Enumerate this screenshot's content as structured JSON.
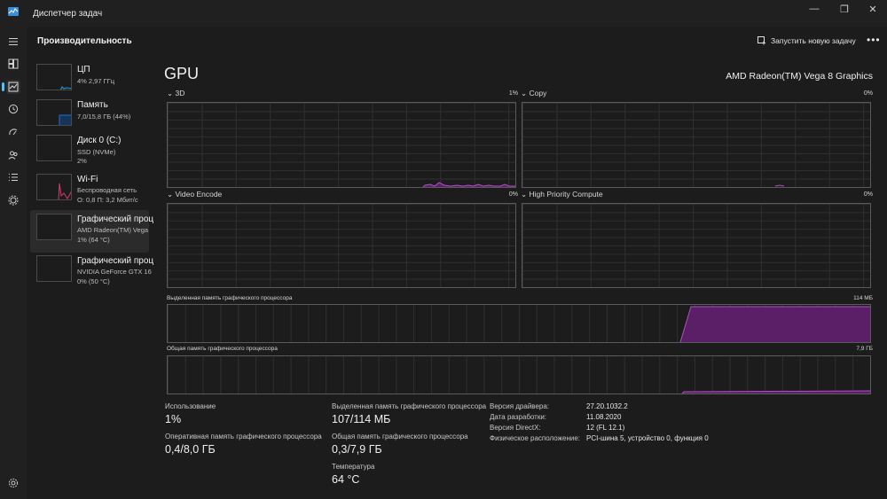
{
  "window": {
    "title": "Диспетчер задач",
    "controls": [
      "—",
      "❐",
      "✕"
    ]
  },
  "header": {
    "page_title": "Производительность",
    "run_task_label": "Запустить новую задачу",
    "more_label": "•••"
  },
  "rail": {
    "icons": [
      "hamburger-icon",
      "processes-icon",
      "performance-icon",
      "history-icon",
      "startup-icon",
      "users-icon",
      "details-icon",
      "services-icon",
      "settings-icon"
    ]
  },
  "devices": [
    {
      "name": "ЦП",
      "line1": "4% 2,97 ГГц",
      "line2": ""
    },
    {
      "name": "Память",
      "line1": "7,0/15,8 ГБ (44%)",
      "line2": ""
    },
    {
      "name": "Диск 0 (C:)",
      "line1": "SSD (NVMe)",
      "line2": "2%"
    },
    {
      "name": "Wi-Fi",
      "line1": "Беспроводная сеть",
      "line2": "О: 0,8 П: 3,2 Мбит/с"
    },
    {
      "name": "Графический проц",
      "line1": "AMD Radeon(TM) Vega",
      "line2": "1% (64 °C)"
    },
    {
      "name": "Графический проц",
      "line1": "NVIDIA GeForce GTX 16",
      "line2": "0% (50 °C)"
    }
  ],
  "gpu": {
    "title": "GPU",
    "model": "AMD Radeon(TM) Vega 8 Graphics",
    "engines": [
      {
        "name": "3D",
        "pct": "1%"
      },
      {
        "name": "Copy",
        "pct": "0%"
      },
      {
        "name": "Video Encode",
        "pct": "0%"
      },
      {
        "name": "High Priority Compute",
        "pct": "0%"
      }
    ],
    "dedicated_label": "Выделенная память графического процессора",
    "dedicated_max": "114 МБ",
    "shared_label": "Общая память графического процессора",
    "shared_max": "7,9 ГБ"
  },
  "stats": {
    "usage_label": "Использование",
    "usage_value": "1%",
    "gpu_ram_label": "Оперативная память графического процессора",
    "gpu_ram_value": "0,4/8,0 ГБ",
    "dedicated_label": "Выделенная память графического процессора",
    "dedicated_value": "107/114 МБ",
    "shared_label": "Общая память графического процессора",
    "shared_value": "0,3/7,9 ГБ",
    "temp_label": "Температура",
    "temp_value": "64 °C"
  },
  "info": [
    {
      "key": "Версия драйвера:",
      "value": "27.20.1032.2"
    },
    {
      "key": "Дата разработки:",
      "value": "11.08.2020"
    },
    {
      "key": "Версия DirectX:",
      "value": "12 (FL 12.1)"
    },
    {
      "key": "Физическое расположение:",
      "value": "PCI-шина 5, устройство 0, функция 0"
    }
  ],
  "colors": {
    "accent": "#4cc2ff",
    "gpu_line": "#b14fc5",
    "gpu_fill": "#5a1f66",
    "cpu_line": "#1ea3e0",
    "wifi_line": "#d43a6a"
  }
}
